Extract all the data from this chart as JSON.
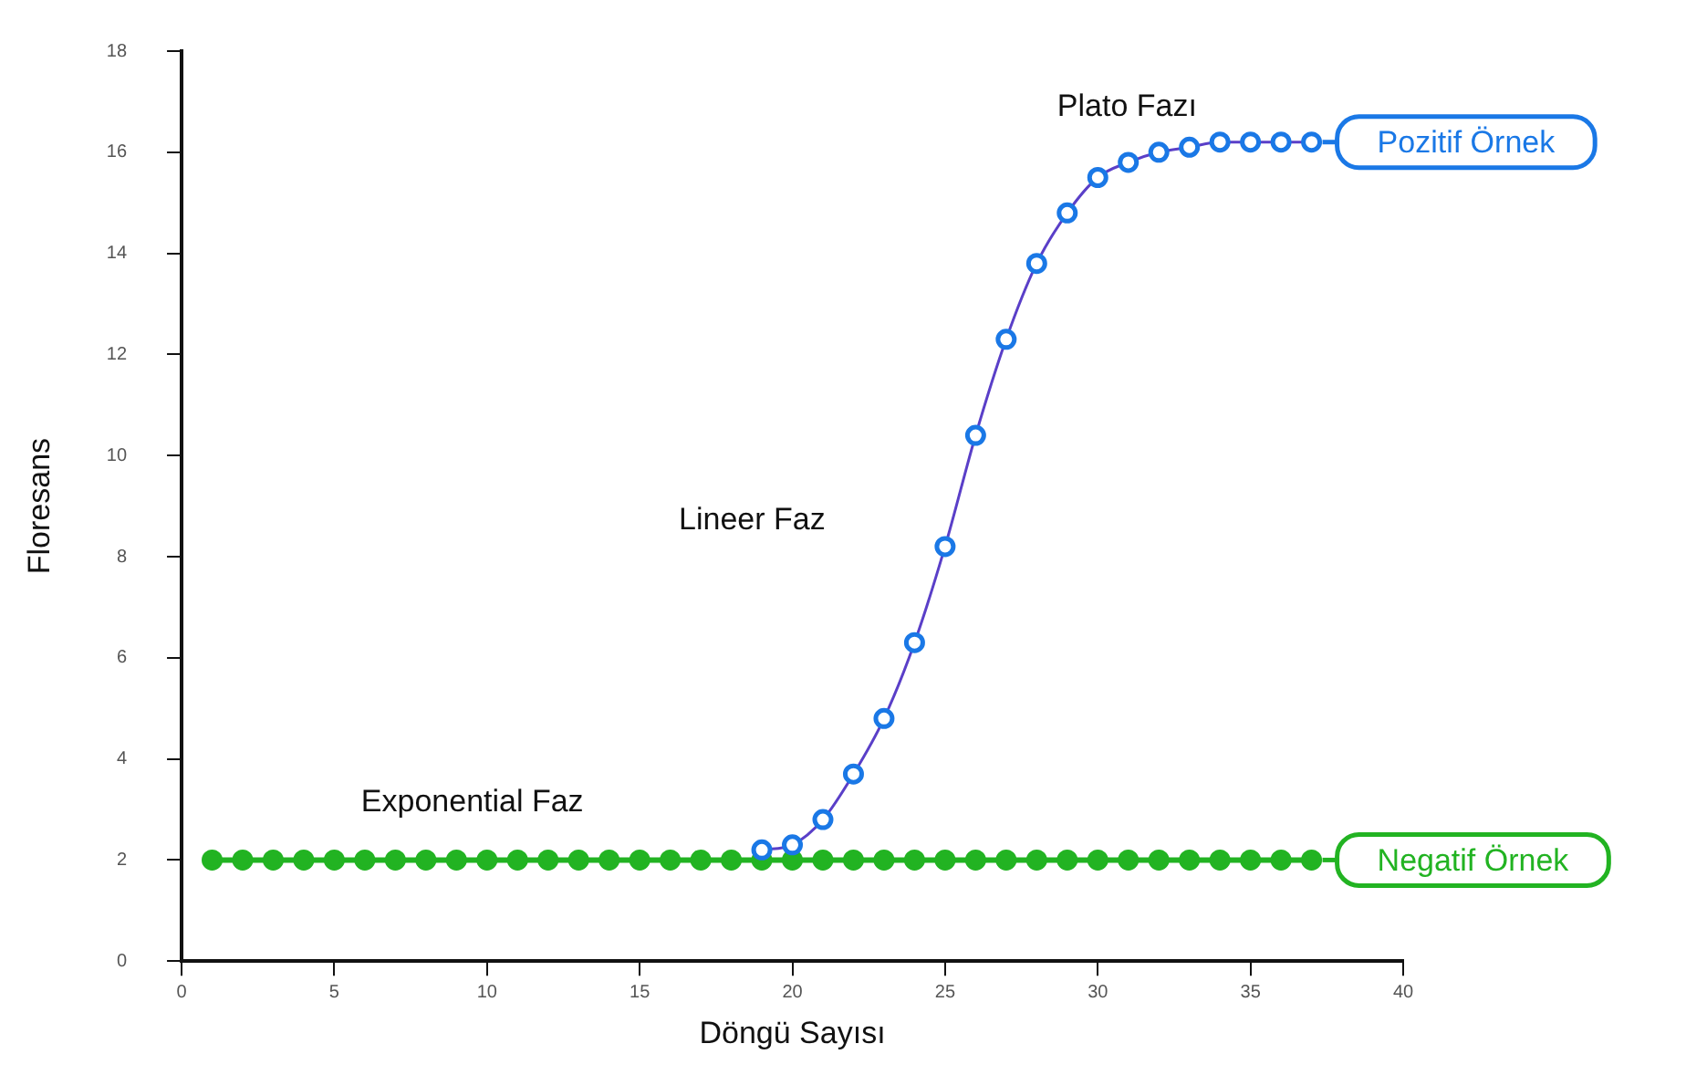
{
  "chart_data": {
    "type": "line",
    "xlabel": "Döngü Sayısı",
    "ylabel": "Floresans",
    "xlim": [
      0,
      40
    ],
    "xticks": [
      0,
      5,
      10,
      15,
      20,
      25,
      30,
      35,
      40
    ],
    "ylim": [
      0,
      18
    ],
    "yticks": [
      0,
      2,
      4,
      6,
      8,
      10,
      12,
      14,
      16,
      18
    ],
    "grid": false,
    "legend": "right",
    "marker": "circle",
    "series": [
      {
        "name": "Pozitif Örnek",
        "color": "#1a78e6",
        "x": [
          19,
          20,
          21,
          22,
          23,
          24,
          25,
          26,
          27,
          28,
          29,
          30,
          31,
          32,
          33,
          34,
          35,
          36,
          37
        ],
        "values": [
          2.2,
          2.3,
          2.8,
          3.7,
          4.8,
          6.3,
          8.2,
          10.4,
          12.3,
          13.8,
          14.8,
          15.5,
          15.8,
          16.0,
          16.1,
          16.2,
          16.2,
          16.2,
          16.2
        ]
      },
      {
        "name": "Negatif Örnek",
        "color": "#22b322",
        "x": [
          1,
          2,
          3,
          4,
          5,
          6,
          7,
          8,
          9,
          10,
          11,
          12,
          13,
          14,
          15,
          16,
          17,
          18,
          19,
          20,
          21,
          22,
          23,
          24,
          25,
          26,
          27,
          28,
          29,
          30,
          31,
          32,
          33,
          34,
          35,
          36,
          37
        ],
        "values": [
          2,
          2,
          2,
          2,
          2,
          2,
          2,
          2,
          2,
          2,
          2,
          2,
          2,
          2,
          2,
          2,
          2,
          2,
          2,
          2,
          2,
          2,
          2,
          2,
          2,
          2,
          2,
          2,
          2,
          2,
          2,
          2,
          2,
          2,
          2,
          2,
          2
        ]
      }
    ],
    "annotations": [
      "Plato Fazı",
      "Lineer Faz",
      "Exponential Faz"
    ]
  }
}
